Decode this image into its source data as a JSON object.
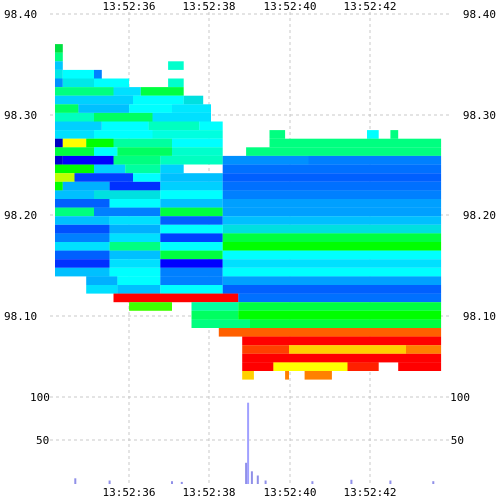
{
  "chart_data": {
    "type": "heatmap",
    "title": "",
    "xlabel": "",
    "ylabel": "",
    "x_ticks": [
      "13:52:36",
      "13:52:38",
      "13:52:40",
      "13:52:42"
    ],
    "price_ticks": [
      "98.40",
      "98.30",
      "98.20",
      "98.10"
    ],
    "volume_ticks": [
      "100",
      "50"
    ],
    "price_range": [
      98.055,
      98.4
    ],
    "volume_range": [
      0,
      140
    ],
    "grid": true,
    "colors": {
      "grid": "#c8c8c8",
      "volume_bar": "#9090e8",
      "volume_spike": "#a0a0ff"
    },
    "heat_rows": [
      {
        "price": 98.368,
        "segments": [
          {
            "x0": 0.0,
            "x1": 0.02,
            "color": "#00e040"
          }
        ]
      },
      {
        "price": 98.36,
        "segments": [
          {
            "x0": 0.0,
            "x1": 0.02,
            "color": "#00ff80"
          }
        ]
      },
      {
        "price": 98.352,
        "segments": [
          {
            "x0": 0.0,
            "x1": 0.02,
            "color": "#00c8ff"
          },
          {
            "x0": 0.29,
            "x1": 0.33,
            "color": "#00ffcc"
          }
        ]
      },
      {
        "price": 98.344,
        "segments": [
          {
            "x0": 0.0,
            "x1": 0.02,
            "color": "#00e8e8"
          },
          {
            "x0": 0.02,
            "x1": 0.1,
            "color": "#00ffff"
          },
          {
            "x0": 0.1,
            "x1": 0.12,
            "color": "#0080ff"
          }
        ]
      },
      {
        "price": 98.336,
        "segments": [
          {
            "x0": 0.0,
            "x1": 0.02,
            "color": "#0090ff"
          },
          {
            "x0": 0.02,
            "x1": 0.1,
            "color": "#00e8e8"
          },
          {
            "x0": 0.1,
            "x1": 0.19,
            "color": "#00ffff"
          },
          {
            "x0": 0.29,
            "x1": 0.33,
            "color": "#00ffcc"
          }
        ]
      },
      {
        "price": 98.328,
        "segments": [
          {
            "x0": 0.0,
            "x1": 0.15,
            "color": "#00ff80"
          },
          {
            "x0": 0.15,
            "x1": 0.22,
            "color": "#00e0ff"
          },
          {
            "x0": 0.22,
            "x1": 0.33,
            "color": "#00ff40"
          }
        ]
      },
      {
        "price": 98.32,
        "segments": [
          {
            "x0": 0.0,
            "x1": 0.2,
            "color": "#00d0ff"
          },
          {
            "x0": 0.2,
            "x1": 0.33,
            "color": "#00ffff"
          },
          {
            "x0": 0.33,
            "x1": 0.38,
            "color": "#00e0e0"
          }
        ]
      },
      {
        "price": 98.312,
        "segments": [
          {
            "x0": 0.0,
            "x1": 0.06,
            "color": "#00ff60"
          },
          {
            "x0": 0.06,
            "x1": 0.19,
            "color": "#00c0ff"
          },
          {
            "x0": 0.19,
            "x1": 0.3,
            "color": "#00ffff"
          },
          {
            "x0": 0.3,
            "x1": 0.4,
            "color": "#00e8ff"
          }
        ]
      },
      {
        "price": 98.304,
        "segments": [
          {
            "x0": 0.0,
            "x1": 0.1,
            "color": "#00ffc0"
          },
          {
            "x0": 0.1,
            "x1": 0.25,
            "color": "#00ff60"
          },
          {
            "x0": 0.25,
            "x1": 0.4,
            "color": "#00e0ff"
          }
        ]
      },
      {
        "price": 98.296,
        "segments": [
          {
            "x0": 0.0,
            "x1": 0.12,
            "color": "#00d0ff"
          },
          {
            "x0": 0.12,
            "x1": 0.24,
            "color": "#00ffff"
          },
          {
            "x0": 0.24,
            "x1": 0.37,
            "color": "#00ffc0"
          },
          {
            "x0": 0.37,
            "x1": 0.43,
            "color": "#00ffff"
          }
        ]
      },
      {
        "price": 98.288,
        "segments": [
          {
            "x0": 0.0,
            "x1": 0.1,
            "color": "#00e0ff"
          },
          {
            "x0": 0.1,
            "x1": 0.25,
            "color": "#00ffff"
          },
          {
            "x0": 0.25,
            "x1": 0.43,
            "color": "#00ffe0"
          },
          {
            "x0": 0.55,
            "x1": 0.59,
            "color": "#00ff80"
          },
          {
            "x0": 0.8,
            "x1": 0.83,
            "color": "#00ffff"
          },
          {
            "x0": 0.86,
            "x1": 0.88,
            "color": "#00ff80"
          }
        ]
      },
      {
        "price": 98.28,
        "segments": [
          {
            "x0": 0.0,
            "x1": 0.02,
            "color": "#0000c0"
          },
          {
            "x0": 0.02,
            "x1": 0.08,
            "color": "#ffff00"
          },
          {
            "x0": 0.08,
            "x1": 0.15,
            "color": "#00ff00"
          },
          {
            "x0": 0.15,
            "x1": 0.3,
            "color": "#00ffa0"
          },
          {
            "x0": 0.3,
            "x1": 0.43,
            "color": "#00ffff"
          },
          {
            "x0": 0.55,
            "x1": 0.99,
            "color": "#00ff80"
          }
        ]
      },
      {
        "price": 98.272,
        "segments": [
          {
            "x0": 0.0,
            "x1": 0.1,
            "color": "#00ff40"
          },
          {
            "x0": 0.1,
            "x1": 0.16,
            "color": "#00ffff"
          },
          {
            "x0": 0.16,
            "x1": 0.3,
            "color": "#00ff60"
          },
          {
            "x0": 0.3,
            "x1": 0.43,
            "color": "#00ffcc"
          },
          {
            "x0": 0.49,
            "x1": 0.99,
            "color": "#00ff80"
          }
        ]
      },
      {
        "price": 98.264,
        "segments": [
          {
            "x0": 0.0,
            "x1": 0.02,
            "color": "#0000d0"
          },
          {
            "x0": 0.02,
            "x1": 0.15,
            "color": "#0000ff"
          },
          {
            "x0": 0.15,
            "x1": 0.27,
            "color": "#00ff80"
          },
          {
            "x0": 0.27,
            "x1": 0.43,
            "color": "#00ffc0"
          },
          {
            "x0": 0.43,
            "x1": 0.65,
            "color": "#0090ff"
          },
          {
            "x0": 0.65,
            "x1": 0.99,
            "color": "#0080ff"
          }
        ]
      },
      {
        "price": 98.256,
        "segments": [
          {
            "x0": 0.0,
            "x1": 0.1,
            "color": "#00ff00"
          },
          {
            "x0": 0.1,
            "x1": 0.18,
            "color": "#00d0ff"
          },
          {
            "x0": 0.18,
            "x1": 0.27,
            "color": "#00ffa0"
          },
          {
            "x0": 0.27,
            "x1": 0.33,
            "color": "#00d0ff"
          },
          {
            "x0": 0.43,
            "x1": 0.99,
            "color": "#0070ff"
          }
        ]
      },
      {
        "price": 98.248,
        "segments": [
          {
            "x0": 0.0,
            "x1": 0.05,
            "color": "#c0ff00"
          },
          {
            "x0": 0.05,
            "x1": 0.2,
            "color": "#0040ff"
          },
          {
            "x0": 0.2,
            "x1": 0.27,
            "color": "#00ffff"
          },
          {
            "x0": 0.27,
            "x1": 0.43,
            "color": "#00c0ff"
          },
          {
            "x0": 0.43,
            "x1": 0.99,
            "color": "#0060ff"
          }
        ]
      },
      {
        "price": 98.24,
        "segments": [
          {
            "x0": 0.0,
            "x1": 0.02,
            "color": "#00ff00"
          },
          {
            "x0": 0.02,
            "x1": 0.14,
            "color": "#00b0ff"
          },
          {
            "x0": 0.14,
            "x1": 0.27,
            "color": "#0030ff"
          },
          {
            "x0": 0.27,
            "x1": 0.43,
            "color": "#00d0ff"
          },
          {
            "x0": 0.43,
            "x1": 0.99,
            "color": "#0070ff"
          }
        ]
      },
      {
        "price": 98.232,
        "segments": [
          {
            "x0": 0.0,
            "x1": 0.1,
            "color": "#00c0ff"
          },
          {
            "x0": 0.1,
            "x1": 0.27,
            "color": "#00e0e0"
          },
          {
            "x0": 0.27,
            "x1": 0.43,
            "color": "#00ffff"
          },
          {
            "x0": 0.43,
            "x1": 0.99,
            "color": "#0080ff"
          }
        ]
      },
      {
        "price": 98.224,
        "segments": [
          {
            "x0": 0.0,
            "x1": 0.14,
            "color": "#0060ff"
          },
          {
            "x0": 0.14,
            "x1": 0.27,
            "color": "#00ffff"
          },
          {
            "x0": 0.27,
            "x1": 0.43,
            "color": "#00c0ff"
          },
          {
            "x0": 0.43,
            "x1": 0.99,
            "color": "#00a0ff"
          }
        ]
      },
      {
        "price": 98.216,
        "segments": [
          {
            "x0": 0.0,
            "x1": 0.1,
            "color": "#00ff80"
          },
          {
            "x0": 0.1,
            "x1": 0.27,
            "color": "#0080ff"
          },
          {
            "x0": 0.27,
            "x1": 0.43,
            "color": "#00ff40"
          },
          {
            "x0": 0.43,
            "x1": 0.99,
            "color": "#00a0ff"
          }
        ]
      },
      {
        "price": 98.208,
        "segments": [
          {
            "x0": 0.0,
            "x1": 0.14,
            "color": "#00c0ff"
          },
          {
            "x0": 0.14,
            "x1": 0.27,
            "color": "#00e0ff"
          },
          {
            "x0": 0.27,
            "x1": 0.43,
            "color": "#0060ff"
          },
          {
            "x0": 0.43,
            "x1": 0.99,
            "color": "#00c0ff"
          }
        ]
      },
      {
        "price": 98.2,
        "segments": [
          {
            "x0": 0.0,
            "x1": 0.14,
            "color": "#0050ff"
          },
          {
            "x0": 0.14,
            "x1": 0.27,
            "color": "#00b0ff"
          },
          {
            "x0": 0.27,
            "x1": 0.43,
            "color": "#00ffff"
          },
          {
            "x0": 0.43,
            "x1": 0.99,
            "color": "#00e0e0"
          }
        ]
      },
      {
        "price": 98.192,
        "segments": [
          {
            "x0": 0.0,
            "x1": 0.14,
            "color": "#0080ff"
          },
          {
            "x0": 0.14,
            "x1": 0.27,
            "color": "#00e0ff"
          },
          {
            "x0": 0.27,
            "x1": 0.43,
            "color": "#0040ff"
          },
          {
            "x0": 0.43,
            "x1": 0.99,
            "color": "#00ff40"
          }
        ]
      },
      {
        "price": 98.184,
        "segments": [
          {
            "x0": 0.0,
            "x1": 0.14,
            "color": "#00e0ff"
          },
          {
            "x0": 0.14,
            "x1": 0.27,
            "color": "#00ff80"
          },
          {
            "x0": 0.27,
            "x1": 0.43,
            "color": "#00ffff"
          },
          {
            "x0": 0.43,
            "x1": 0.99,
            "color": "#00ff00"
          }
        ]
      },
      {
        "price": 98.176,
        "segments": [
          {
            "x0": 0.0,
            "x1": 0.14,
            "color": "#0060ff"
          },
          {
            "x0": 0.14,
            "x1": 0.27,
            "color": "#00c0ff"
          },
          {
            "x0": 0.27,
            "x1": 0.43,
            "color": "#00ff40"
          },
          {
            "x0": 0.43,
            "x1": 0.99,
            "color": "#00ffff"
          }
        ]
      },
      {
        "price": 98.168,
        "segments": [
          {
            "x0": 0.0,
            "x1": 0.14,
            "color": "#0030ff"
          },
          {
            "x0": 0.14,
            "x1": 0.27,
            "color": "#00e0ff"
          },
          {
            "x0": 0.27,
            "x1": 0.43,
            "color": "#0000ff"
          },
          {
            "x0": 0.43,
            "x1": 0.99,
            "color": "#00e0ff"
          }
        ]
      },
      {
        "price": 98.16,
        "segments": [
          {
            "x0": 0.0,
            "x1": 0.14,
            "color": "#00c0ff"
          },
          {
            "x0": 0.14,
            "x1": 0.27,
            "color": "#00ffff"
          },
          {
            "x0": 0.27,
            "x1": 0.43,
            "color": "#0080ff"
          },
          {
            "x0": 0.43,
            "x1": 0.99,
            "color": "#00ffff"
          }
        ]
      },
      {
        "price": 98.152,
        "segments": [
          {
            "x0": 0.08,
            "x1": 0.16,
            "color": "#00b0ff"
          },
          {
            "x0": 0.16,
            "x1": 0.27,
            "color": "#00ffff"
          },
          {
            "x0": 0.27,
            "x1": 0.43,
            "color": "#0080ff"
          },
          {
            "x0": 0.43,
            "x1": 0.99,
            "color": "#00a0ff"
          }
        ]
      },
      {
        "price": 98.144,
        "segments": [
          {
            "x0": 0.08,
            "x1": 0.16,
            "color": "#00e0ff"
          },
          {
            "x0": 0.16,
            "x1": 0.27,
            "color": "#00c0ff"
          },
          {
            "x0": 0.27,
            "x1": 0.43,
            "color": "#00ffff"
          },
          {
            "x0": 0.43,
            "x1": 0.99,
            "color": "#0060ff"
          }
        ]
      },
      {
        "price": 98.136,
        "segments": [
          {
            "x0": 0.15,
            "x1": 0.3,
            "color": "#ff0000"
          },
          {
            "x0": 0.3,
            "x1": 0.47,
            "color": "#ff0000"
          },
          {
            "x0": 0.47,
            "x1": 0.99,
            "color": "#0070ff"
          }
        ]
      },
      {
        "price": 98.128,
        "segments": [
          {
            "x0": 0.19,
            "x1": 0.3,
            "color": "#40ff00"
          },
          {
            "x0": 0.35,
            "x1": 0.47,
            "color": "#00ffa0"
          },
          {
            "x0": 0.47,
            "x1": 0.99,
            "color": "#00ff40"
          }
        ]
      },
      {
        "price": 98.12,
        "segments": [
          {
            "x0": 0.35,
            "x1": 0.47,
            "color": "#00ff60"
          },
          {
            "x0": 0.47,
            "x1": 0.99,
            "color": "#00ff00"
          }
        ]
      },
      {
        "price": 98.112,
        "segments": [
          {
            "x0": 0.35,
            "x1": 0.5,
            "color": "#00ff80"
          },
          {
            "x0": 0.5,
            "x1": 0.99,
            "color": "#00ff40"
          }
        ]
      },
      {
        "price": 98.104,
        "segments": [
          {
            "x0": 0.42,
            "x1": 0.99,
            "color": "#ff6000"
          }
        ]
      },
      {
        "price": 98.096,
        "segments": [
          {
            "x0": 0.48,
            "x1": 0.99,
            "color": "#ff0000"
          }
        ]
      },
      {
        "price": 98.088,
        "segments": [
          {
            "x0": 0.48,
            "x1": 0.6,
            "color": "#ff4000"
          },
          {
            "x0": 0.6,
            "x1": 0.9,
            "color": "#ffd000"
          },
          {
            "x0": 0.9,
            "x1": 0.99,
            "color": "#ff8000"
          }
        ]
      },
      {
        "price": 98.08,
        "segments": [
          {
            "x0": 0.48,
            "x1": 0.99,
            "color": "#ff0000"
          }
        ]
      },
      {
        "price": 98.072,
        "segments": [
          {
            "x0": 0.48,
            "x1": 0.56,
            "color": "#ff0000"
          },
          {
            "x0": 0.56,
            "x1": 0.75,
            "color": "#ffff00"
          },
          {
            "x0": 0.75,
            "x1": 0.83,
            "color": "#ff2000"
          },
          {
            "x0": 0.88,
            "x1": 0.99,
            "color": "#ff0000"
          }
        ]
      },
      {
        "price": 98.064,
        "segments": [
          {
            "x0": 0.48,
            "x1": 0.51,
            "color": "#ffd000"
          },
          {
            "x0": 0.59,
            "x1": 0.6,
            "color": "#ff8000"
          },
          {
            "x0": 0.64,
            "x1": 0.71,
            "color": "#ff8000"
          }
        ]
      }
    ],
    "volume_bars": [
      {
        "x": 0.052,
        "value": 8
      },
      {
        "x": 0.14,
        "value": 5
      },
      {
        "x": 0.3,
        "value": 4
      },
      {
        "x": 0.325,
        "value": 3
      },
      {
        "x": 0.49,
        "value": 30
      },
      {
        "x": 0.495,
        "value": 115
      },
      {
        "x": 0.505,
        "value": 18
      },
      {
        "x": 0.52,
        "value": 12
      },
      {
        "x": 0.54,
        "value": 5
      },
      {
        "x": 0.66,
        "value": 4
      },
      {
        "x": 0.76,
        "value": 6
      },
      {
        "x": 0.86,
        "value": 5
      },
      {
        "x": 0.97,
        "value": 4
      }
    ]
  }
}
